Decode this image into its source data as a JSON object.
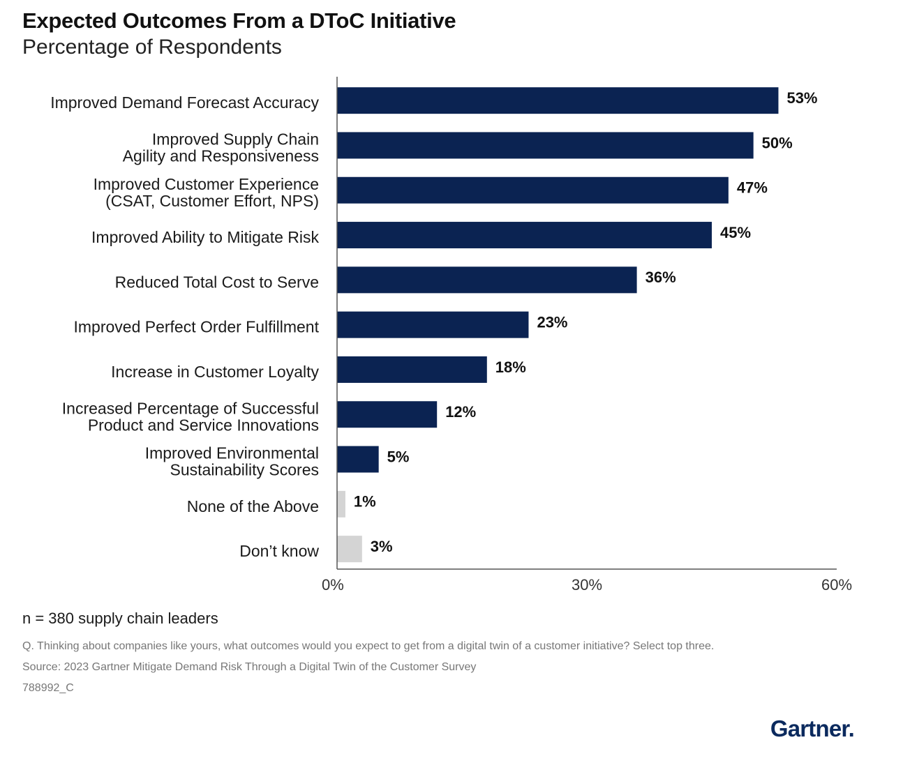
{
  "chart_data": {
    "type": "bar",
    "orientation": "horizontal",
    "title": "Expected Outcomes From a DToC Initiative",
    "subtitle": "Percentage of Respondents",
    "categories": [
      [
        "Improved Demand Forecast Accuracy"
      ],
      [
        "Improved Supply Chain",
        "Agility and Responsiveness"
      ],
      [
        "Improved Customer Experience",
        "(CSAT, Customer Effort, NPS)"
      ],
      [
        "Improved Ability to Mitigate Risk"
      ],
      [
        "Reduced Total Cost to Serve"
      ],
      [
        "Improved Perfect Order Fulfillment"
      ],
      [
        "Increase in Customer Loyalty"
      ],
      [
        "Increased Percentage of Successful",
        "Product and Service Innovations"
      ],
      [
        "Improved Environmental",
        "Sustainability Scores"
      ],
      [
        "None of the Above"
      ],
      [
        "Don’t know"
      ]
    ],
    "values": [
      53,
      50,
      47,
      45,
      36,
      23,
      18,
      12,
      5,
      1,
      3
    ],
    "value_labels": [
      "53%",
      "50%",
      "47%",
      "45%",
      "36%",
      "23%",
      "18%",
      "12%",
      "5%",
      "1%",
      "3%"
    ],
    "bar_colors": [
      "#0b2352",
      "#0b2352",
      "#0b2352",
      "#0b2352",
      "#0b2352",
      "#0b2352",
      "#0b2352",
      "#0b2352",
      "#0b2352",
      "#d4d4d4",
      "#d4d4d4"
    ],
    "xlim": [
      0,
      60
    ],
    "xticks": [
      0,
      30,
      60
    ],
    "xtick_labels": [
      "0%",
      "30%",
      "60%"
    ],
    "grid": false
  },
  "notes": {
    "sample": "n = 380 supply chain leaders",
    "question": "Q. Thinking about companies like yours, what outcomes would you expect to get from a digital twin of a customer initiative? Select top three.",
    "source": "Source: 2023 Gartner Mitigate Demand Risk Through a Digital Twin of the Customer Survey",
    "code": "788992_C"
  },
  "brand": {
    "logo_text": "Gartner",
    "logo_dot": ".",
    "color": "#0b2a5e"
  }
}
